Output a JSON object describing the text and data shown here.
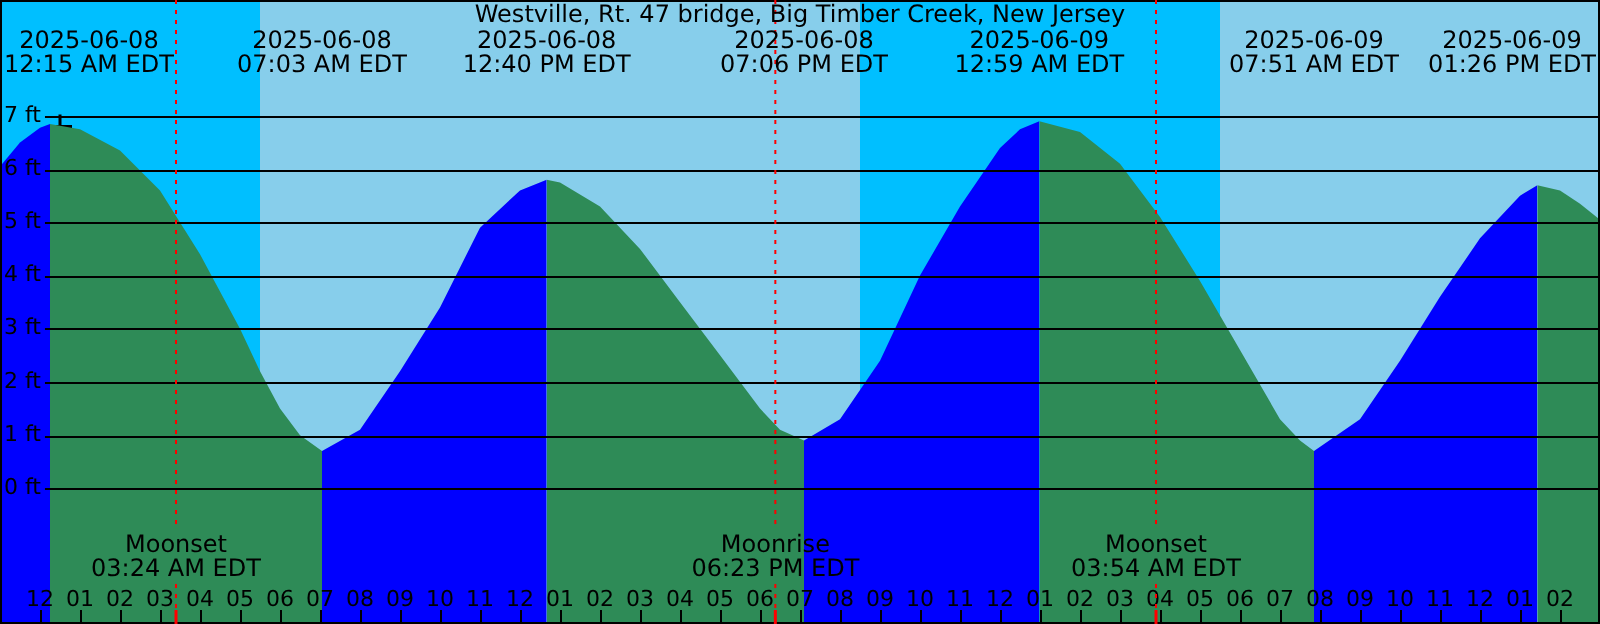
{
  "chart_data": {
    "type": "area",
    "title": "Westville, Rt. 47 bridge, Big Timber Creek, New Jersey",
    "xlim": [
      "2025-06-07T23:00",
      "2025-06-09T15:00"
    ],
    "ylim": [
      -2.55,
      9.18
    ],
    "xticks": [
      {
        "value": "2025-06-08T00:00",
        "label": "12"
      },
      {
        "value": "2025-06-08T01:00",
        "label": "01"
      },
      {
        "value": "2025-06-08T02:00",
        "label": "02"
      },
      {
        "value": "2025-06-08T03:00",
        "label": "03"
      },
      {
        "value": "2025-06-08T04:00",
        "label": "04"
      },
      {
        "value": "2025-06-08T05:00",
        "label": "05"
      },
      {
        "value": "2025-06-08T06:00",
        "label": "06"
      },
      {
        "value": "2025-06-08T07:00",
        "label": "07"
      },
      {
        "value": "2025-06-08T08:00",
        "label": "08"
      },
      {
        "value": "2025-06-08T09:00",
        "label": "09"
      },
      {
        "value": "2025-06-08T10:00",
        "label": "10"
      },
      {
        "value": "2025-06-08T11:00",
        "label": "11"
      },
      {
        "value": "2025-06-08T12:00",
        "label": "12"
      },
      {
        "value": "2025-06-08T13:00",
        "label": "01"
      },
      {
        "value": "2025-06-08T14:00",
        "label": "02"
      },
      {
        "value": "2025-06-08T15:00",
        "label": "03"
      },
      {
        "value": "2025-06-08T16:00",
        "label": "04"
      },
      {
        "value": "2025-06-08T17:00",
        "label": "05"
      },
      {
        "value": "2025-06-08T18:00",
        "label": "06"
      },
      {
        "value": "2025-06-08T19:00",
        "label": "07"
      },
      {
        "value": "2025-06-08T20:00",
        "label": "08"
      },
      {
        "value": "2025-06-08T21:00",
        "label": "09"
      },
      {
        "value": "2025-06-08T22:00",
        "label": "10"
      },
      {
        "value": "2025-06-08T23:00",
        "label": "11"
      },
      {
        "value": "2025-06-09T00:00",
        "label": "12"
      },
      {
        "value": "2025-06-09T01:00",
        "label": "01"
      },
      {
        "value": "2025-06-09T02:00",
        "label": "02"
      },
      {
        "value": "2025-06-09T03:00",
        "label": "03"
      },
      {
        "value": "2025-06-09T04:00",
        "label": "04"
      },
      {
        "value": "2025-06-09T05:00",
        "label": "05"
      },
      {
        "value": "2025-06-09T06:00",
        "label": "06"
      },
      {
        "value": "2025-06-09T07:00",
        "label": "07"
      },
      {
        "value": "2025-06-09T08:00",
        "label": "08"
      },
      {
        "value": "2025-06-09T09:00",
        "label": "09"
      },
      {
        "value": "2025-06-09T10:00",
        "label": "10"
      },
      {
        "value": "2025-06-09T11:00",
        "label": "11"
      },
      {
        "value": "2025-06-09T12:00",
        "label": "12"
      },
      {
        "value": "2025-06-09T13:00",
        "label": "01"
      },
      {
        "value": "2025-06-09T14:00",
        "label": "02"
      }
    ],
    "yticks": [
      {
        "value": 0,
        "label": "0 ft"
      },
      {
        "value": 1,
        "label": "1 ft"
      },
      {
        "value": 2,
        "label": "2 ft"
      },
      {
        "value": 3,
        "label": "3 ft"
      },
      {
        "value": 4,
        "label": "4 ft"
      },
      {
        "value": 5,
        "label": "5 ft"
      },
      {
        "value": 6,
        "label": "6 ft"
      },
      {
        "value": 7,
        "label": "7 ft"
      }
    ],
    "grid": "y",
    "legend": false,
    "bands": [
      {
        "axis": "x",
        "from": "2025-06-07T23:00",
        "to": "2025-06-08T05:30",
        "color": "#00bfff"
      },
      {
        "axis": "x",
        "from": "2025-06-08T05:30",
        "to": "2025-06-08T20:30",
        "color": "#87ceeb"
      },
      {
        "axis": "x",
        "from": "2025-06-08T20:30",
        "to": "2025-06-09T05:30",
        "color": "#00bfff"
      },
      {
        "axis": "x",
        "from": "2025-06-09T05:30",
        "to": "2025-06-09T15:00",
        "color": "#87ceeb"
      }
    ],
    "series": [
      {
        "color": "#0000ff",
        "x": [
          "2025-06-07T23:00",
          "2025-06-07T23:30",
          "2025-06-08T00:00",
          "2025-06-08T00:15"
        ],
        "values": [
          6.05,
          6.5,
          6.78,
          6.85
        ]
      },
      {
        "color": "#2e8b57",
        "x": [
          "2025-06-08T00:15",
          "2025-06-08T01:00",
          "2025-06-08T02:00",
          "2025-06-08T03:00",
          "2025-06-08T04:00",
          "2025-06-08T05:00",
          "2025-06-08T05:30",
          "2025-06-08T06:00",
          "2025-06-08T06:30",
          "2025-06-08T07:03"
        ],
        "values": [
          6.85,
          6.75,
          6.35,
          5.6,
          4.4,
          3.0,
          2.2,
          1.5,
          1.0,
          0.7
        ]
      },
      {
        "color": "#0000ff",
        "x": [
          "2025-06-08T07:03",
          "2025-06-08T08:00",
          "2025-06-08T09:00",
          "2025-06-08T10:00",
          "2025-06-08T11:00",
          "2025-06-08T12:00",
          "2025-06-08T12:40"
        ],
        "values": [
          0.7,
          1.1,
          2.2,
          3.4,
          4.9,
          5.6,
          5.8
        ]
      },
      {
        "color": "#2e8b57",
        "x": [
          "2025-06-08T12:40",
          "2025-06-08T13:00",
          "2025-06-08T14:00",
          "2025-06-08T15:00",
          "2025-06-08T16:00",
          "2025-06-08T17:00",
          "2025-06-08T18:00",
          "2025-06-08T18:30",
          "2025-06-08T19:06"
        ],
        "values": [
          5.8,
          5.75,
          5.3,
          4.5,
          3.5,
          2.5,
          1.5,
          1.1,
          0.9
        ]
      },
      {
        "color": "#0000ff",
        "x": [
          "2025-06-08T19:06",
          "2025-06-08T20:00",
          "2025-06-08T21:00",
          "2025-06-08T22:00",
          "2025-06-08T23:00",
          "2025-06-09T00:00",
          "2025-06-09T00:30",
          "2025-06-09T00:59"
        ],
        "values": [
          0.9,
          1.3,
          2.4,
          4.0,
          5.3,
          6.4,
          6.75,
          6.9
        ]
      },
      {
        "color": "#2e8b57",
        "x": [
          "2025-06-09T00:59",
          "2025-06-09T02:00",
          "2025-06-09T03:00",
          "2025-06-09T04:00",
          "2025-06-09T05:00",
          "2025-06-09T06:00",
          "2025-06-09T07:00",
          "2025-06-09T07:30",
          "2025-06-09T07:51"
        ],
        "values": [
          6.9,
          6.7,
          6.1,
          5.1,
          3.9,
          2.6,
          1.3,
          0.9,
          0.7
        ]
      },
      {
        "color": "#0000ff",
        "x": [
          "2025-06-09T07:51",
          "2025-06-09T09:00",
          "2025-06-09T10:00",
          "2025-06-09T11:00",
          "2025-06-09T12:00",
          "2025-06-09T13:00",
          "2025-06-09T13:26"
        ],
        "values": [
          0.7,
          1.3,
          2.4,
          3.6,
          4.7,
          5.5,
          5.7
        ]
      },
      {
        "color": "#2e8b57",
        "x": [
          "2025-06-09T13:26",
          "2025-06-09T14:00",
          "2025-06-09T14:30",
          "2025-06-09T15:00"
        ],
        "values": [
          5.7,
          5.6,
          5.35,
          5.05
        ]
      },
      {
        "type": "scatter",
        "marker": "cross",
        "color": "#000000",
        "x": [
          "2025-06-08T00:30"
        ],
        "values": [
          6.8
        ]
      }
    ],
    "annotations": [
      "2025-06-08\n12:15 AM EDT",
      "2025-06-08\n07:03 AM EDT",
      "2025-06-08\n12:40 PM EDT",
      "2025-06-08\n07:06 PM EDT",
      "2025-06-09\n12:59 AM EDT",
      "2025-06-09\n07:51 AM EDT",
      "2025-06-09\n01:26 PM EDT"
    ],
    "ref_lines": [
      {
        "axis": "x",
        "value": "2025-06-08T03:24",
        "label": "Moonset\n03:24 AM EDT",
        "color": "#ff0000"
      },
      {
        "axis": "x",
        "value": "2025-06-08T18:23",
        "label": "Moonrise\n06:23 PM EDT",
        "color": "#ff0000"
      },
      {
        "axis": "x",
        "value": "2025-06-09T03:54",
        "label": "Moonset\n03:54 AM EDT",
        "color": "#ff0000"
      }
    ]
  }
}
